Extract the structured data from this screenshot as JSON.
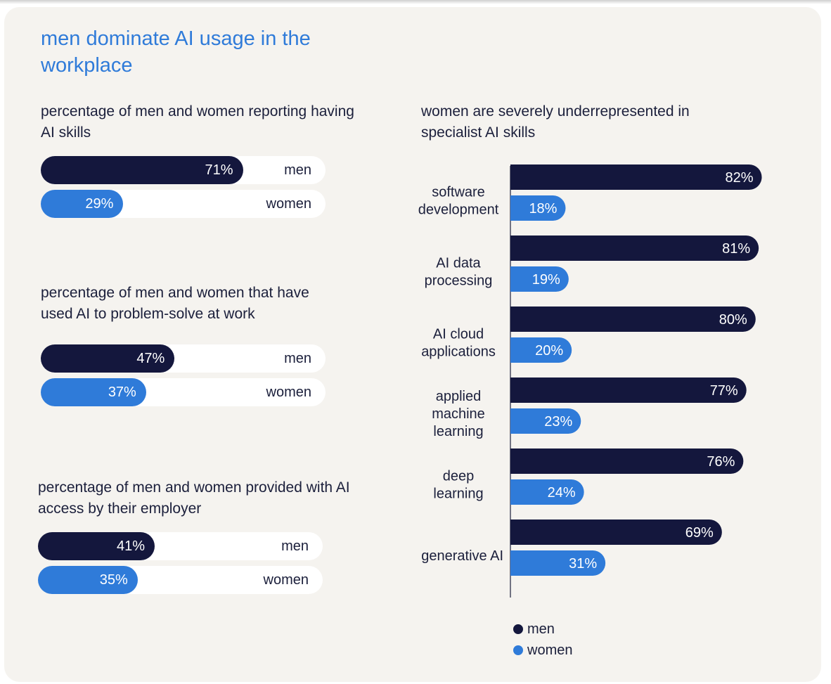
{
  "title": "men dominate AI usage in the workplace",
  "colors": {
    "men": "#14173d",
    "women": "#2f7bd9",
    "title": "#2f7bd9",
    "card_background": "#f5f3ef"
  },
  "chart_data": [
    {
      "type": "bar",
      "title": "percentage of men and women reporting having AI skills",
      "categories": [
        "men",
        "women"
      ],
      "values": [
        71,
        29
      ],
      "value_labels": [
        "71%",
        "29%"
      ],
      "ylim": [
        0,
        100
      ]
    },
    {
      "type": "bar",
      "title": "percentage of men and women that have used AI to problem-solve at work",
      "categories": [
        "men",
        "women"
      ],
      "values": [
        47,
        37
      ],
      "value_labels": [
        "47%",
        "37%"
      ],
      "ylim": [
        0,
        100
      ]
    },
    {
      "type": "bar",
      "title": "percentage of men and women provided with AI access by their employer",
      "categories": [
        "men",
        "women"
      ],
      "values": [
        41,
        35
      ],
      "value_labels": [
        "41%",
        "35%"
      ],
      "ylim": [
        0,
        100
      ]
    },
    {
      "type": "bar",
      "title": "women are severely underrepresented in specialist AI skills",
      "categories": [
        [
          "software",
          "development"
        ],
        [
          "AI data",
          "processing"
        ],
        [
          "AI cloud",
          "applications"
        ],
        [
          "applied",
          "machine",
          "learning"
        ],
        [
          "deep",
          "learning"
        ],
        [
          "generative AI"
        ]
      ],
      "series": [
        {
          "name": "men",
          "values": [
            82,
            81,
            80,
            77,
            76,
            69
          ],
          "labels": [
            "82%",
            "81%",
            "80%",
            "77%",
            "76%",
            "69%"
          ]
        },
        {
          "name": "women",
          "values": [
            18,
            19,
            20,
            23,
            24,
            31
          ],
          "labels": [
            "18%",
            "19%",
            "20%",
            "23%",
            "24%",
            "31%"
          ]
        }
      ],
      "legend": {
        "placement": "bottom",
        "entries": [
          "men",
          "women"
        ]
      },
      "ylim": [
        0,
        100
      ]
    }
  ]
}
